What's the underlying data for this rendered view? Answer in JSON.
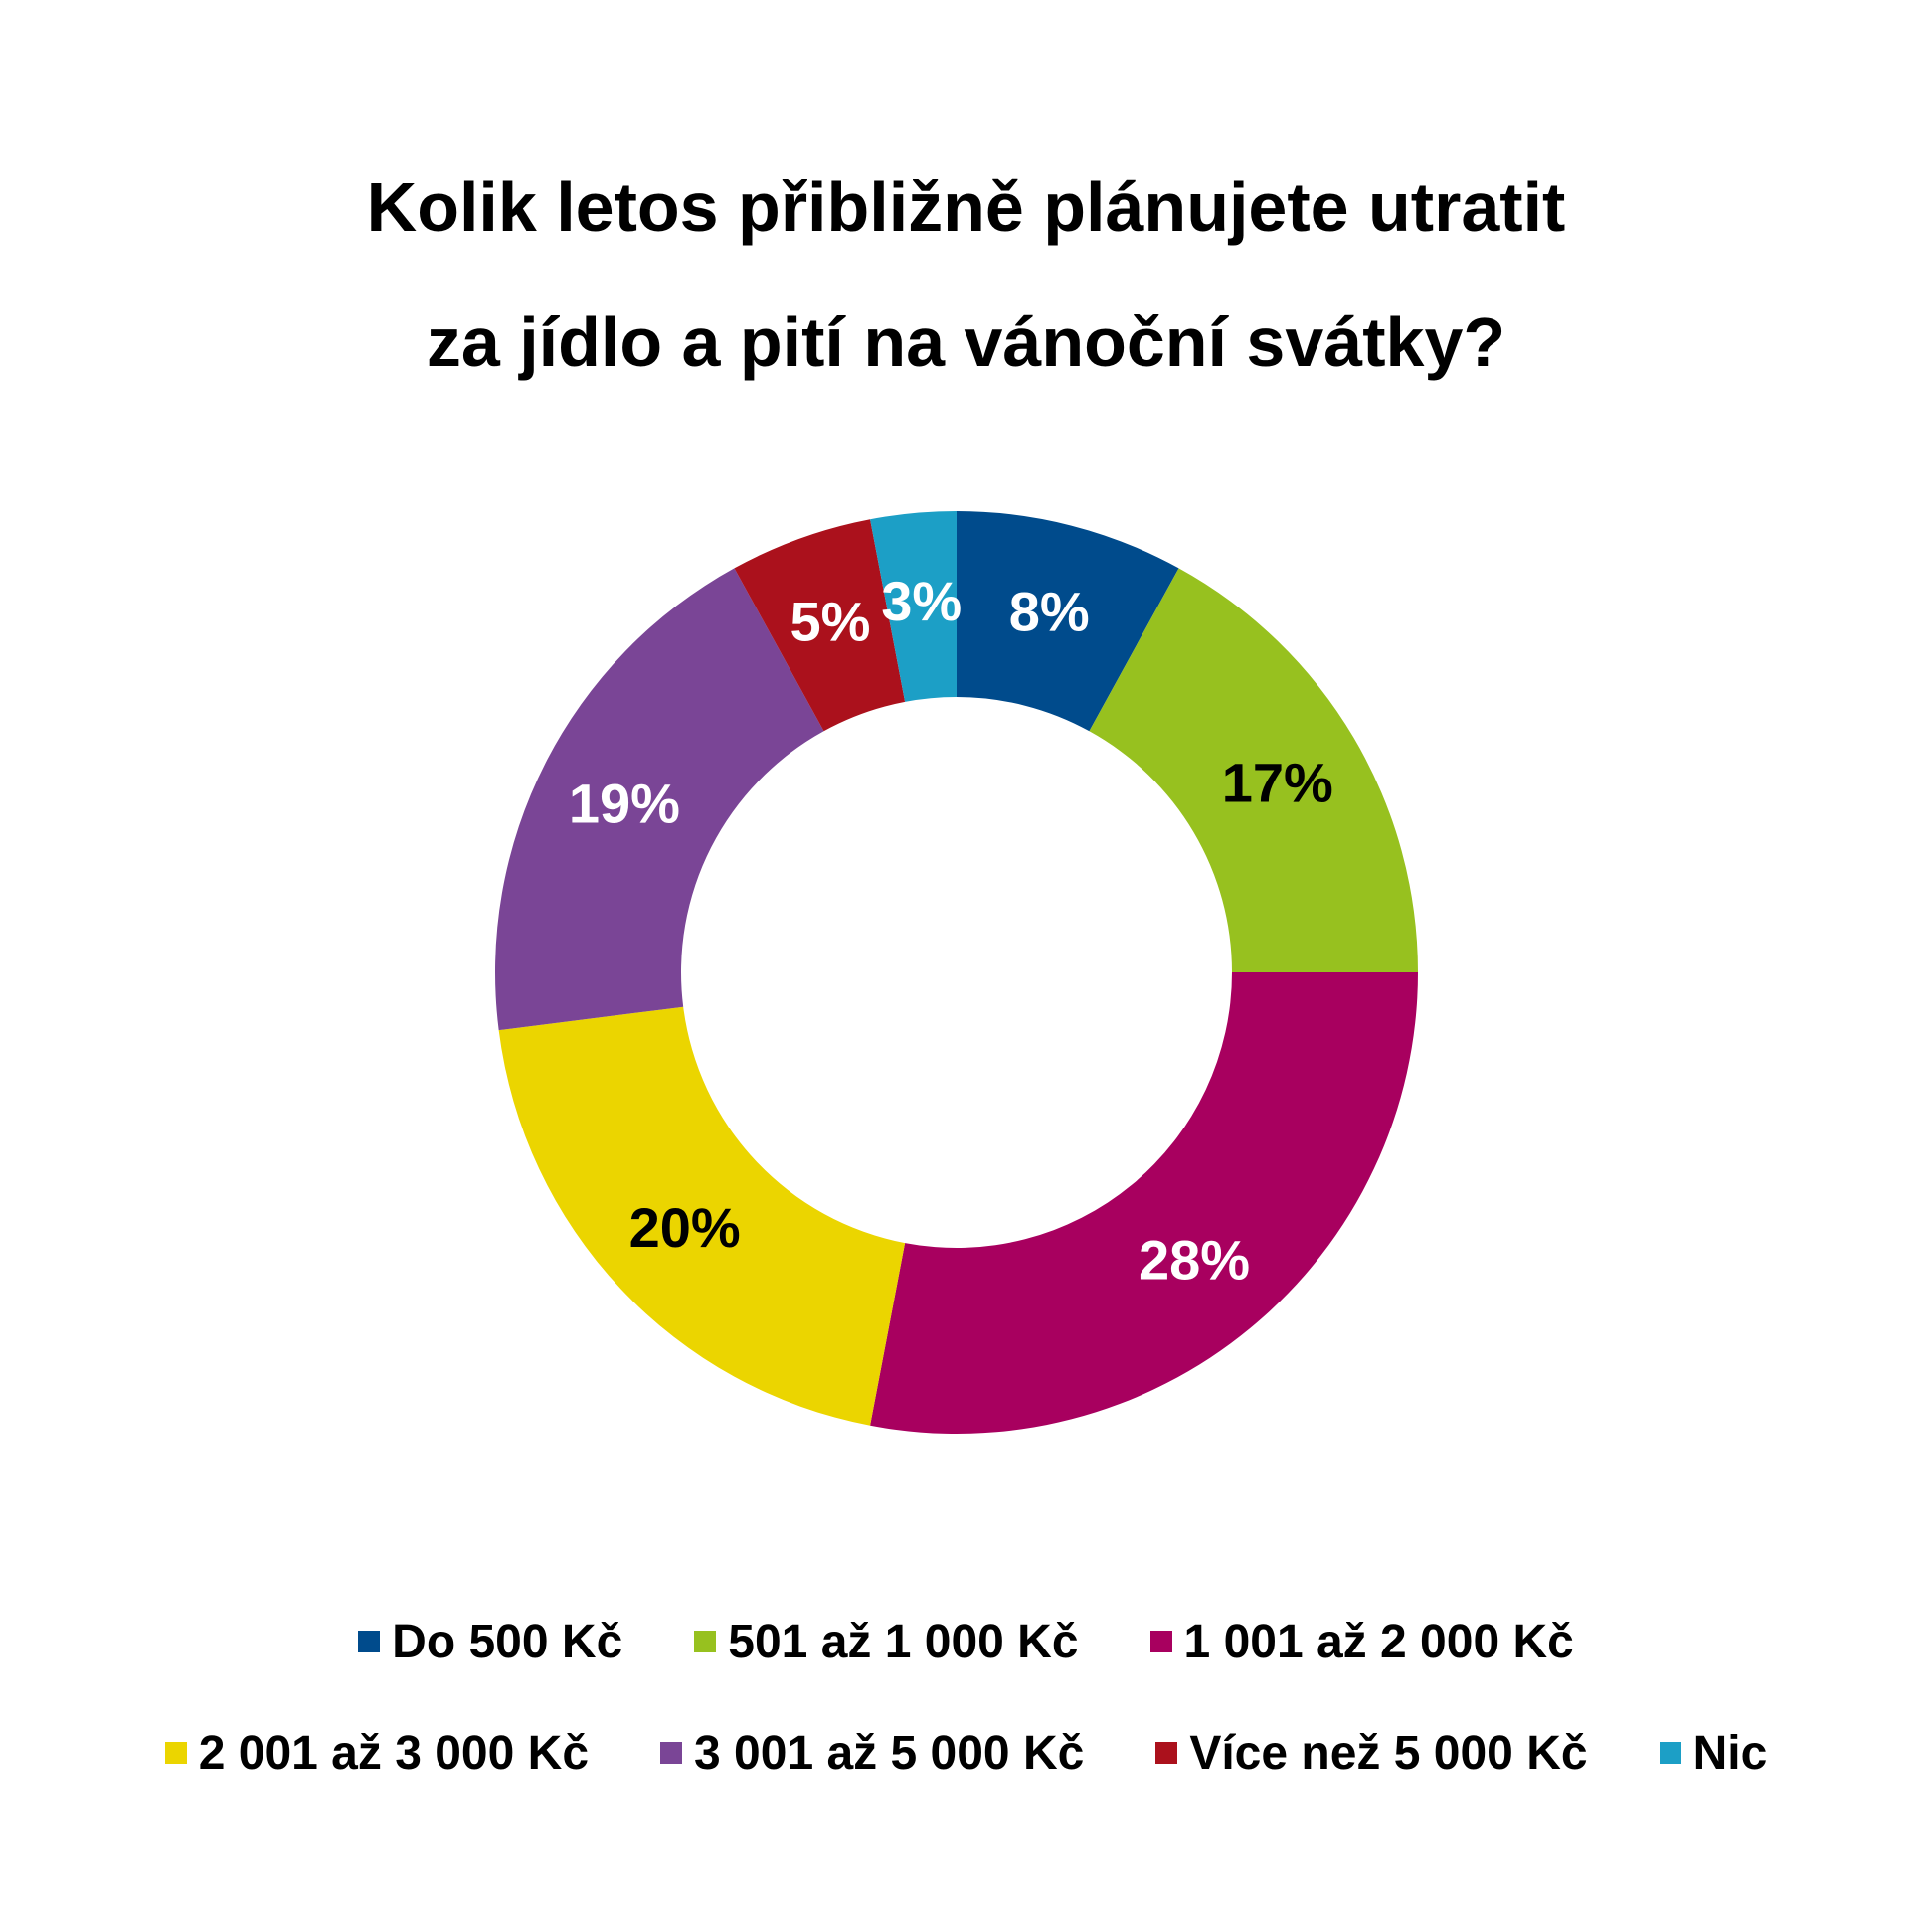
{
  "chart_data": {
    "type": "pie",
    "style": "donut",
    "title": "Kolik letos přibližně plánujete utratit za jídlo a pití na vánoční svátky?",
    "title_lines": [
      "Kolik letos přibližně plánujete utratit",
      "za jídlo a pití na vánoční svátky?"
    ],
    "unit": "%",
    "slices": [
      {
        "name": "Do 500 Kč",
        "value": 8,
        "label": "8%",
        "color": "#004b8c",
        "label_color": "#ffffff"
      },
      {
        "name": "501 až 1 000 Kč",
        "value": 17,
        "label": "17%",
        "color": "#97c11f",
        "label_color": "#000000"
      },
      {
        "name": "1 001 až 2 000 Kč",
        "value": 28,
        "label": "28%",
        "color": "#a8005f",
        "label_color": "#ffffff"
      },
      {
        "name": "2 001 až 3 000 Kč",
        "value": 20,
        "label": "20%",
        "color": "#ebd500",
        "label_color": "#000000"
      },
      {
        "name": "3 001 až 5 000 Kč",
        "value": 19,
        "label": "19%",
        "color": "#7a4596",
        "label_color": "#ffffff"
      },
      {
        "name": "Více než 5 000 Kč",
        "value": 5,
        "label": "5%",
        "color": "#ab111c",
        "label_color": "#ffffff"
      },
      {
        "name": "Nic",
        "value": 3,
        "label": "3%",
        "color": "#1c9fc6",
        "label_color": "#ffffff"
      }
    ],
    "legend_placement": "bottom",
    "legend_rows": [
      [
        0,
        1,
        2
      ],
      [
        3,
        4,
        5,
        6
      ]
    ]
  }
}
